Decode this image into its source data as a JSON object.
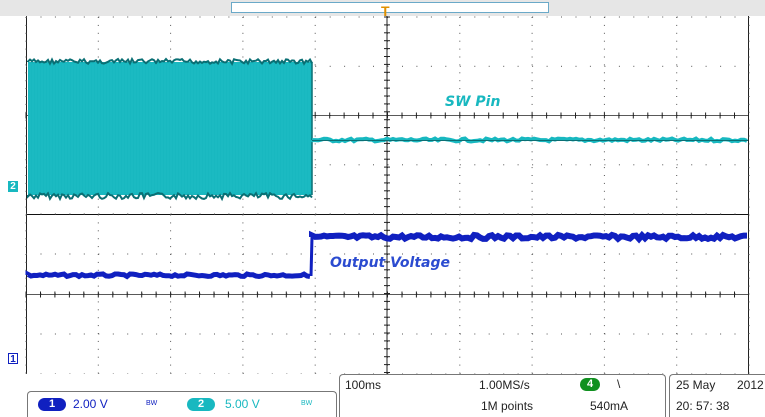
{
  "display": {
    "trigger_marker": "T",
    "channel_markers": {
      "ch2": "2",
      "ch1": "1"
    },
    "annotations": {
      "sw_pin": "SW Pin",
      "output_voltage": "Output Voltage"
    },
    "colors": {
      "ch1": "#1020c0",
      "ch2": "#18b8c0",
      "ch2_edge": "#0a6f74",
      "grid": "#000000",
      "trigger": "#e09000"
    }
  },
  "status": {
    "ch1": {
      "number": "1",
      "scale": "2.00 V",
      "bw": "BW"
    },
    "ch2": {
      "number": "2",
      "scale": "5.00 V",
      "bw": "BW"
    },
    "timebase": "100ms",
    "sample_rate": "1.00MS/s",
    "record_length": "1M points",
    "trigger_channel": "4",
    "trigger_slope": "\\",
    "trigger_level": "540mA",
    "date": "25 May",
    "year": "2012",
    "time": "20: 57: 38"
  }
}
